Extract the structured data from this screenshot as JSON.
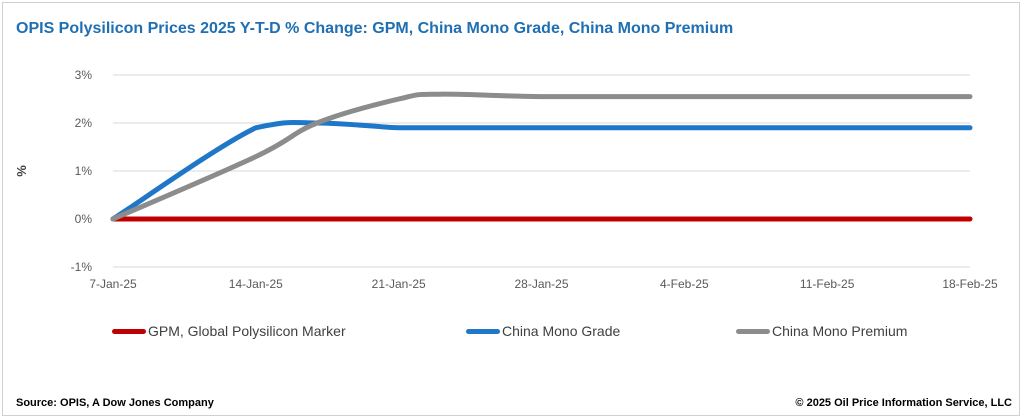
{
  "title": "OPIS  Polysilicon Prices 2025 Y-T-D %  Change: GPM, China Mono Grade, China Mono Premium",
  "source": "Source: OPIS, A Dow Jones Company",
  "copyright": "© 2025 Oil Price Information Service, LLC",
  "chart_data": {
    "type": "line",
    "title": "OPIS  Polysilicon Prices 2025 Y-T-D %  Change: GPM, China Mono Grade, China Mono Premium",
    "xlabel": "",
    "ylabel": "%",
    "x": [
      "7-Jan-25",
      "14-Jan-25",
      "17-Jan-25",
      "21-Jan-25",
      "23-Jan-25",
      "28-Jan-25",
      "4-Feb-25",
      "11-Feb-25",
      "18-Feb-25"
    ],
    "x_ticks": [
      "7-Jan-25",
      "14-Jan-25",
      "21-Jan-25",
      "28-Jan-25",
      "4-Feb-25",
      "11-Feb-25",
      "18-Feb-25"
    ],
    "y_ticks": [
      "3%",
      "2%",
      "1%",
      "0%",
      "-1%"
    ],
    "ylim": [
      -1,
      3
    ],
    "grid": true,
    "legend_position": "bottom",
    "series": [
      {
        "name": "GPM, Global Polysilicon Marker",
        "color": "#c00000",
        "values": [
          0,
          0,
          0,
          0,
          0,
          0,
          0,
          0,
          0
        ]
      },
      {
        "name": "China Mono Grade",
        "color": "#1f77c8",
        "values": [
          0,
          1.9,
          2.0,
          1.9,
          1.9,
          1.9,
          1.9,
          1.9,
          1.9
        ]
      },
      {
        "name": "China Mono Premium",
        "color": "#8c8c8c",
        "values": [
          0,
          1.3,
          2.0,
          2.5,
          2.6,
          2.55,
          2.55,
          2.55,
          2.55
        ]
      }
    ]
  }
}
